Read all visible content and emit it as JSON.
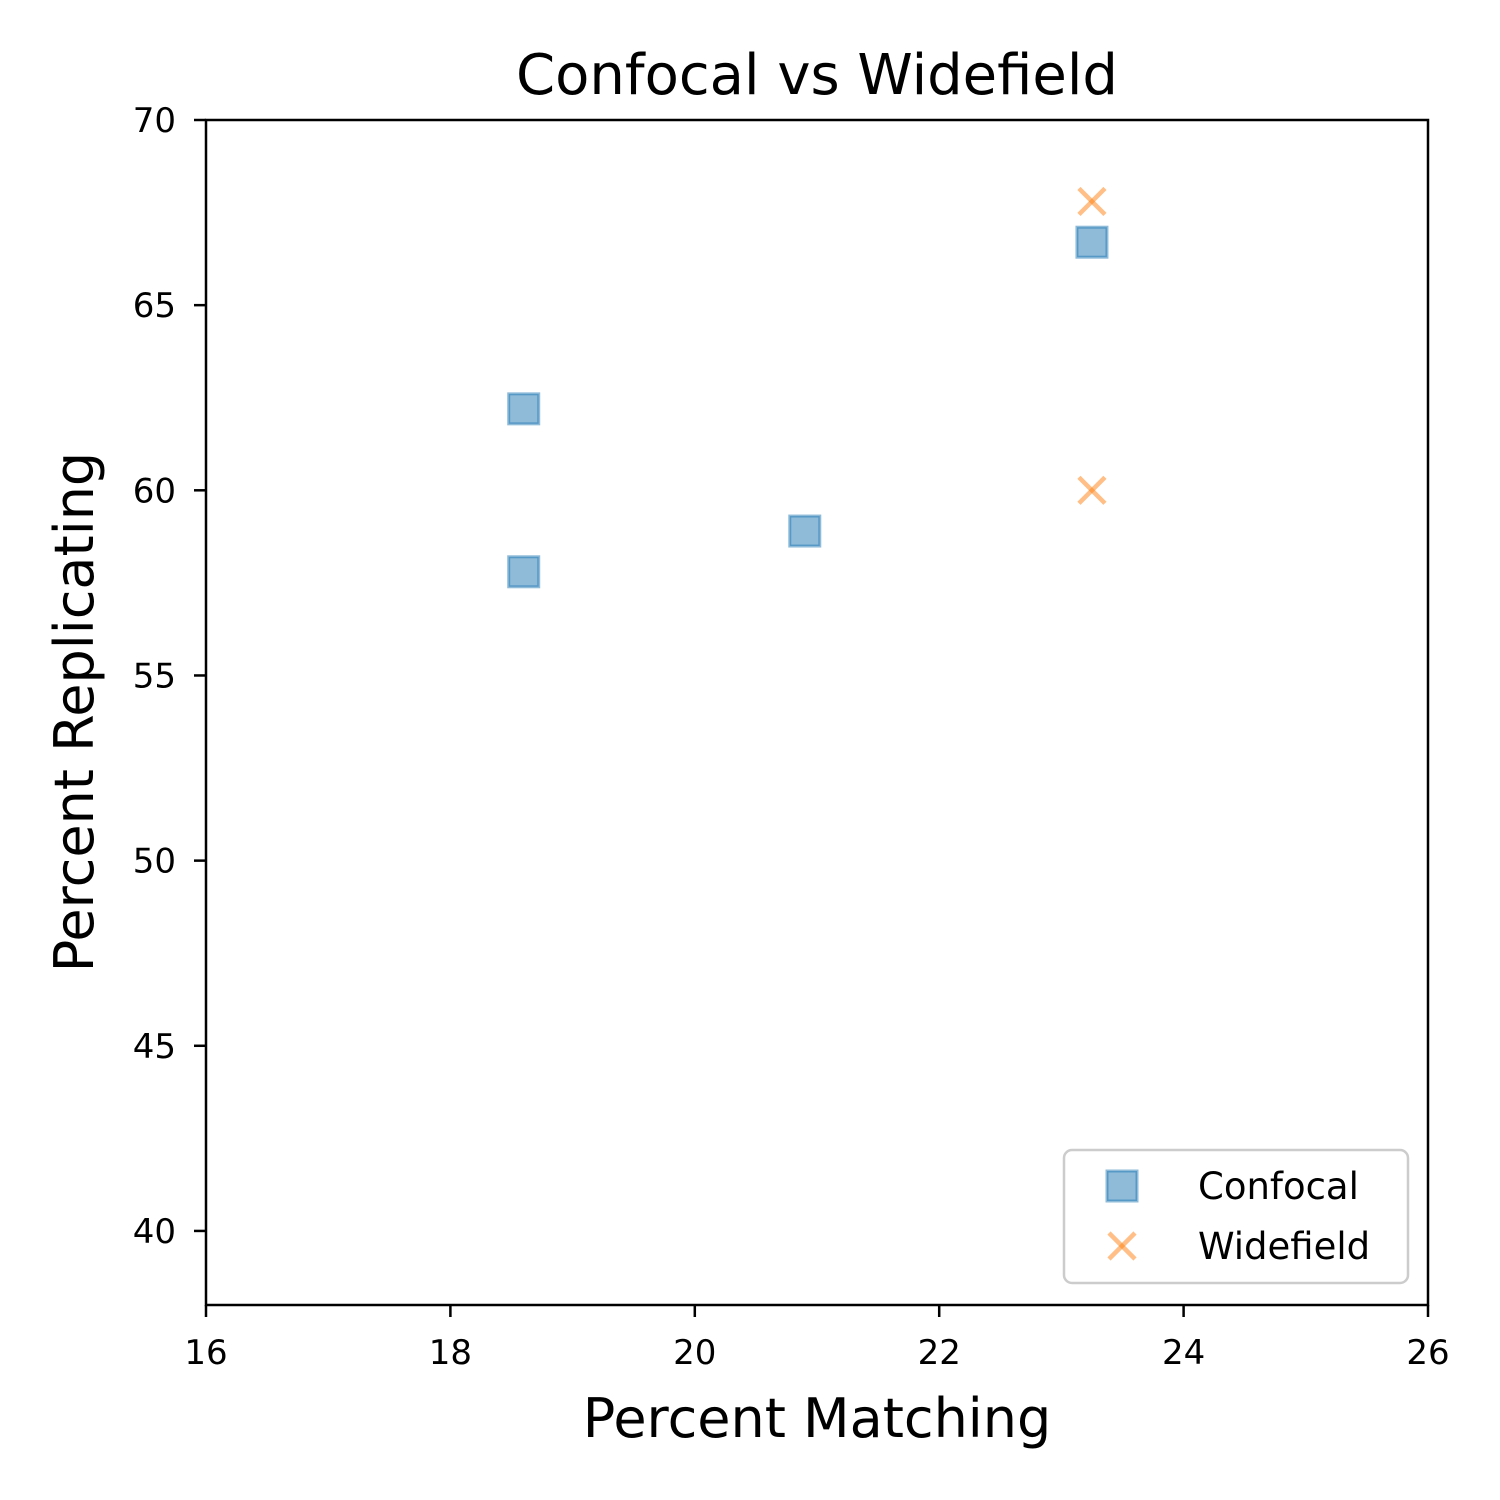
{
  "chart_data": {
    "type": "scatter",
    "title": "Confocal vs Widefield",
    "xlabel": "Percent Matching",
    "ylabel": "Percent Replicating",
    "xlim": [
      16,
      26
    ],
    "ylim": [
      38,
      70
    ],
    "xticks": [
      16,
      18,
      20,
      22,
      24,
      26
    ],
    "yticks": [
      40,
      45,
      50,
      55,
      60,
      65,
      70
    ],
    "grid": false,
    "legend": {
      "placement": "bottom-right"
    },
    "series": [
      {
        "name": "Confocal",
        "marker": "square",
        "color": "#1f77b4",
        "points": [
          {
            "x": 18.6,
            "y": 62.2
          },
          {
            "x": 18.6,
            "y": 57.8
          },
          {
            "x": 20.9,
            "y": 58.9
          },
          {
            "x": 23.25,
            "y": 66.7
          }
        ]
      },
      {
        "name": "Widefield",
        "marker": "x",
        "color": "#ff7f0e",
        "points": [
          {
            "x": 23.25,
            "y": 67.8
          },
          {
            "x": 23.25,
            "y": 60.0
          }
        ]
      }
    ]
  }
}
